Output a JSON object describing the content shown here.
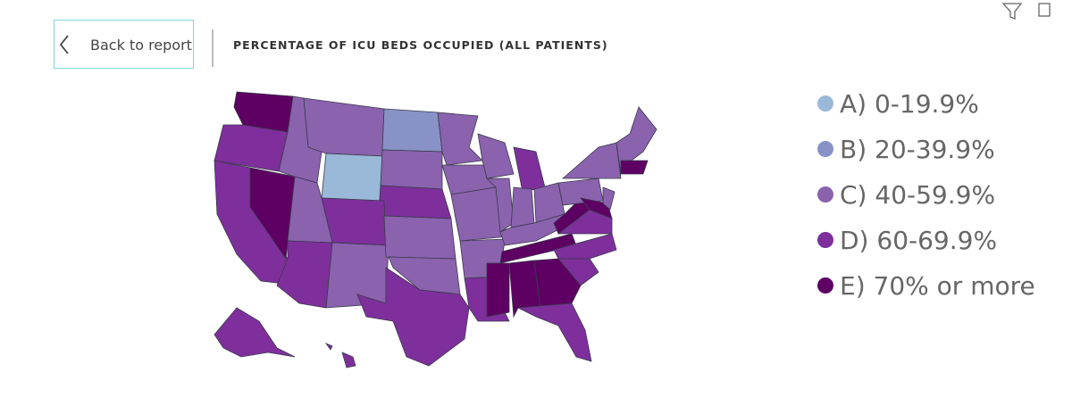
{
  "header": {
    "back_button": "Back to report",
    "title": "PERCENTAGE OF ICU BEDS OCCUPIED (ALL PATIENTS)"
  },
  "legend": {
    "items": [
      {
        "label": "A) 0-19.9%",
        "color": "#9ab8d8"
      },
      {
        "label": "B) 20-39.9%",
        "color": "#8892c6"
      },
      {
        "label": "C) 40-59.9%",
        "color": "#8a62ae"
      },
      {
        "label": "D) 60-69.9%",
        "color": "#7e2f9c"
      },
      {
        "label": "E) 70% or more",
        "color": "#5e0063"
      }
    ]
  }
}
